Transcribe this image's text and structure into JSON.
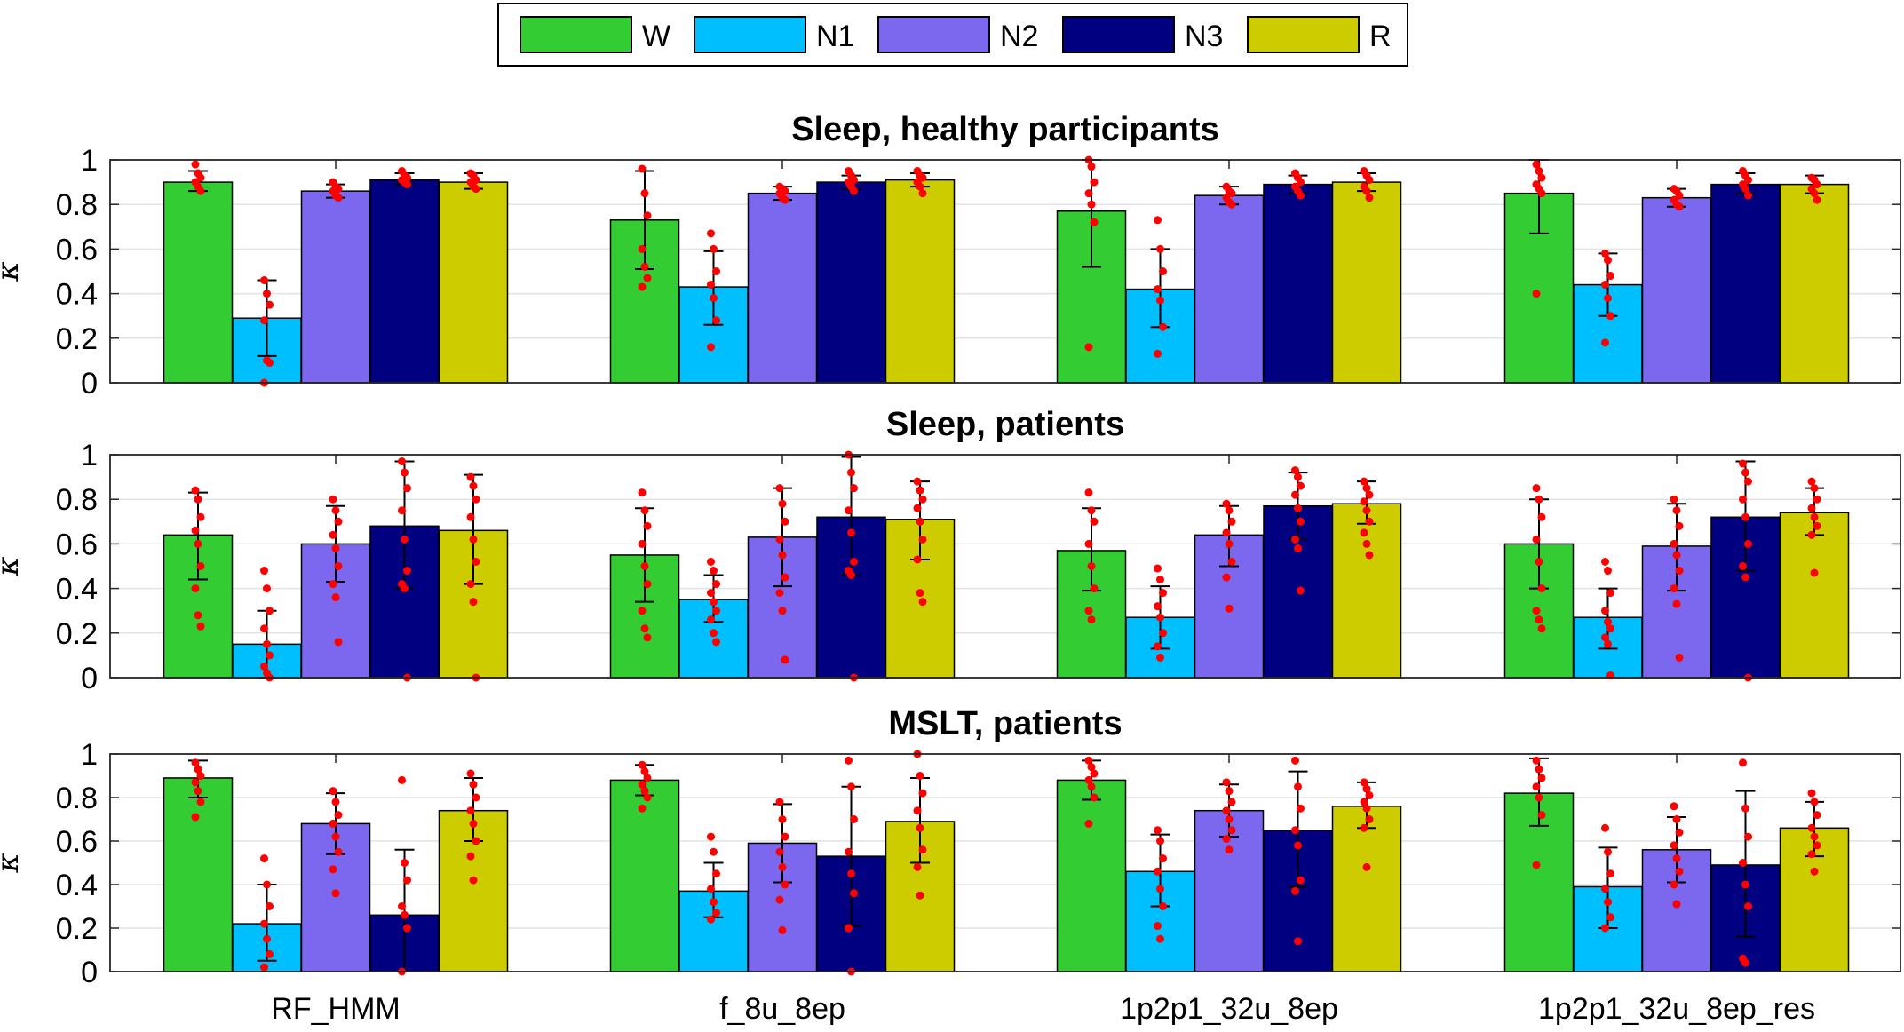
{
  "legend": [
    {
      "label": "W",
      "color": "#33cc33"
    },
    {
      "label": "N1",
      "color": "#00bfff"
    },
    {
      "label": "N2",
      "color": "#7b68ee"
    },
    {
      "label": "N3",
      "color": "#000080"
    },
    {
      "label": "R",
      "color": "#cccc00"
    }
  ],
  "chart_data": [
    {
      "type": "bar",
      "title": "Sleep, healthy participants",
      "ylabel": "κ",
      "ylim": [
        0,
        1
      ],
      "yticks": [
        "0",
        "0.2",
        "0.4",
        "0.6",
        "0.8",
        "1"
      ],
      "categories": [
        "RF_HMM",
        "f_8u_8ep",
        "1p2p1_32u_8ep",
        "1p2p1_32u_8ep_res"
      ],
      "series": [
        {
          "name": "W",
          "values": [
            0.9,
            0.73,
            0.77,
            0.85
          ],
          "err_low": [
            0.86,
            0.51,
            0.52,
            0.67
          ],
          "err_high": [
            0.95,
            0.95,
            1.0,
            1.0
          ],
          "points": [
            [
              0.98,
              0.94,
              0.92,
              0.9,
              0.88,
              0.86
            ],
            [
              0.96,
              0.85,
              0.75,
              0.6,
              0.52,
              0.47,
              0.43
            ],
            [
              1.0,
              0.97,
              0.9,
              0.85,
              0.8,
              0.72,
              0.16
            ],
            [
              0.98,
              0.95,
              0.92,
              0.89,
              0.87,
              0.85,
              0.4
            ]
          ]
        },
        {
          "name": "N1",
          "values": [
            0.29,
            0.43,
            0.42,
            0.44
          ],
          "err_low": [
            0.12,
            0.26,
            0.25,
            0.3
          ],
          "err_high": [
            0.46,
            0.59,
            0.6,
            0.58
          ],
          "points": [
            [
              0.46,
              0.4,
              0.35,
              0.28,
              0.1,
              0.09,
              0.0
            ],
            [
              0.67,
              0.6,
              0.5,
              0.44,
              0.38,
              0.28,
              0.16
            ],
            [
              0.73,
              0.6,
              0.5,
              0.42,
              0.37,
              0.25,
              0.13
            ],
            [
              0.58,
              0.55,
              0.48,
              0.44,
              0.38,
              0.3,
              0.18
            ]
          ]
        },
        {
          "name": "N2",
          "values": [
            0.86,
            0.85,
            0.84,
            0.83
          ],
          "err_low": [
            0.83,
            0.82,
            0.8,
            0.79
          ],
          "err_high": [
            0.89,
            0.88,
            0.88,
            0.87
          ],
          "points": [
            [
              0.9,
              0.88,
              0.87,
              0.86,
              0.84,
              0.83
            ],
            [
              0.88,
              0.87,
              0.86,
              0.85,
              0.83,
              0.82
            ],
            [
              0.88,
              0.86,
              0.85,
              0.83,
              0.81,
              0.8
            ],
            [
              0.87,
              0.86,
              0.84,
              0.82,
              0.8,
              0.79
            ]
          ]
        },
        {
          "name": "N3",
          "values": [
            0.91,
            0.9,
            0.89,
            0.89
          ],
          "err_low": [
            0.89,
            0.87,
            0.85,
            0.85
          ],
          "err_high": [
            0.94,
            0.93,
            0.93,
            0.94
          ],
          "points": [
            [
              0.95,
              0.93,
              0.92,
              0.91,
              0.9,
              0.89
            ],
            [
              0.95,
              0.93,
              0.91,
              0.9,
              0.88,
              0.86
            ],
            [
              0.94,
              0.92,
              0.9,
              0.88,
              0.86,
              0.84
            ],
            [
              0.95,
              0.93,
              0.91,
              0.89,
              0.87,
              0.84
            ]
          ]
        },
        {
          "name": "R",
          "values": [
            0.9,
            0.91,
            0.9,
            0.89
          ],
          "err_low": [
            0.87,
            0.88,
            0.86,
            0.85
          ],
          "err_high": [
            0.94,
            0.94,
            0.94,
            0.93
          ],
          "points": [
            [
              0.94,
              0.93,
              0.91,
              0.9,
              0.88,
              0.87
            ],
            [
              0.95,
              0.93,
              0.92,
              0.9,
              0.88,
              0.85
            ],
            [
              0.95,
              0.93,
              0.91,
              0.88,
              0.86,
              0.83
            ],
            [
              0.92,
              0.91,
              0.89,
              0.87,
              0.85,
              0.82
            ]
          ]
        }
      ]
    },
    {
      "type": "bar",
      "title": "Sleep, patients",
      "ylabel": "κ",
      "ylim": [
        0,
        1
      ],
      "yticks": [
        "0",
        "0.2",
        "0.4",
        "0.6",
        "0.8",
        "1"
      ],
      "categories": [
        "RF_HMM",
        "f_8u_8ep",
        "1p2p1_32u_8ep",
        "1p2p1_32u_8ep_res"
      ],
      "series": [
        {
          "name": "W",
          "values": [
            0.64,
            0.55,
            0.57,
            0.6
          ],
          "err_low": [
            0.44,
            0.34,
            0.39,
            0.4
          ],
          "err_high": [
            0.83,
            0.76,
            0.76,
            0.8
          ],
          "points": [
            [
              0.84,
              0.8,
              0.72,
              0.66,
              0.6,
              0.5,
              0.4,
              0.28,
              0.23
            ],
            [
              0.83,
              0.75,
              0.68,
              0.6,
              0.5,
              0.42,
              0.3,
              0.22,
              0.18
            ],
            [
              0.83,
              0.75,
              0.7,
              0.6,
              0.5,
              0.4,
              0.3,
              0.26
            ],
            [
              0.85,
              0.8,
              0.72,
              0.62,
              0.52,
              0.4,
              0.3,
              0.26,
              0.22
            ]
          ]
        },
        {
          "name": "N1",
          "values": [
            0.15,
            0.35,
            0.27,
            0.27
          ],
          "err_low": [
            0.0,
            0.25,
            0.13,
            0.13
          ],
          "err_high": [
            0.3,
            0.46,
            0.41,
            0.4
          ],
          "points": [
            [
              0.48,
              0.4,
              0.3,
              0.22,
              0.15,
              0.1,
              0.05,
              0.02,
              0.0
            ],
            [
              0.52,
              0.48,
              0.42,
              0.38,
              0.34,
              0.3,
              0.26,
              0.2,
              0.16
            ],
            [
              0.49,
              0.44,
              0.38,
              0.32,
              0.27,
              0.2,
              0.14,
              0.09
            ],
            [
              0.52,
              0.48,
              0.38,
              0.3,
              0.25,
              0.22,
              0.18,
              0.15,
              0.01
            ]
          ]
        },
        {
          "name": "N2",
          "values": [
            0.6,
            0.63,
            0.64,
            0.59
          ],
          "err_low": [
            0.43,
            0.41,
            0.5,
            0.39
          ],
          "err_high": [
            0.77,
            0.85,
            0.77,
            0.78
          ],
          "points": [
            [
              0.8,
              0.75,
              0.7,
              0.64,
              0.58,
              0.5,
              0.42,
              0.36,
              0.16
            ],
            [
              0.85,
              0.78,
              0.7,
              0.62,
              0.55,
              0.45,
              0.38,
              0.3,
              0.08
            ],
            [
              0.78,
              0.75,
              0.7,
              0.65,
              0.6,
              0.52,
              0.45,
              0.31
            ],
            [
              0.8,
              0.75,
              0.68,
              0.6,
              0.55,
              0.48,
              0.4,
              0.33,
              0.09
            ]
          ]
        },
        {
          "name": "N3",
          "values": [
            0.68,
            0.72,
            0.77,
            0.72
          ],
          "err_low": [
            0.4,
            0.46,
            0.62,
            0.48
          ],
          "err_high": [
            0.97,
            0.99,
            0.92,
            0.97
          ],
          "points": [
            [
              0.97,
              0.92,
              0.85,
              0.75,
              0.62,
              0.48,
              0.42,
              0.4,
              0.0
            ],
            [
              1.0,
              0.92,
              0.85,
              0.75,
              0.65,
              0.52,
              0.48,
              0.46,
              0.0
            ],
            [
              0.93,
              0.9,
              0.86,
              0.82,
              0.76,
              0.7,
              0.62,
              0.58,
              0.39
            ],
            [
              0.96,
              0.92,
              0.88,
              0.8,
              0.72,
              0.6,
              0.5,
              0.45,
              0.0
            ]
          ]
        },
        {
          "name": "R",
          "values": [
            0.66,
            0.71,
            0.78,
            0.74
          ],
          "err_low": [
            0.42,
            0.53,
            0.69,
            0.64
          ],
          "err_high": [
            0.91,
            0.88,
            0.88,
            0.85
          ],
          "points": [
            [
              0.9,
              0.86,
              0.8,
              0.72,
              0.62,
              0.52,
              0.42,
              0.34,
              0.0
            ],
            [
              0.88,
              0.84,
              0.8,
              0.76,
              0.7,
              0.62,
              0.53,
              0.38,
              0.34
            ],
            [
              0.88,
              0.85,
              0.82,
              0.79,
              0.75,
              0.7,
              0.65,
              0.6,
              0.55
            ],
            [
              0.88,
              0.85,
              0.8,
              0.76,
              0.72,
              0.68,
              0.64,
              0.47
            ]
          ]
        }
      ]
    },
    {
      "type": "bar",
      "title": "MSLT, patients",
      "ylabel": "κ",
      "ylim": [
        0,
        1
      ],
      "yticks": [
        "0",
        "0.2",
        "0.4",
        "0.6",
        "0.8",
        "1"
      ],
      "categories": [
        "RF_HMM",
        "f_8u_8ep",
        "1p2p1_32u_8ep",
        "1p2p1_32u_8ep_res"
      ],
      "series": [
        {
          "name": "W",
          "values": [
            0.89,
            0.88,
            0.88,
            0.82
          ],
          "err_low": [
            0.8,
            0.81,
            0.79,
            0.67
          ],
          "err_high": [
            0.97,
            0.95,
            0.97,
            0.98
          ],
          "points": [
            [
              0.96,
              0.93,
              0.9,
              0.87,
              0.83,
              0.78,
              0.71
            ],
            [
              0.95,
              0.92,
              0.89,
              0.86,
              0.83,
              0.8,
              0.75
            ],
            [
              0.97,
              0.94,
              0.91,
              0.88,
              0.85,
              0.8,
              0.68
            ],
            [
              0.97,
              0.93,
              0.89,
              0.85,
              0.8,
              0.72,
              0.49
            ]
          ]
        },
        {
          "name": "N1",
          "values": [
            0.22,
            0.37,
            0.46,
            0.39
          ],
          "err_low": [
            0.05,
            0.25,
            0.3,
            0.2
          ],
          "err_high": [
            0.4,
            0.5,
            0.63,
            0.57
          ],
          "points": [
            [
              0.52,
              0.4,
              0.3,
              0.22,
              0.15,
              0.08,
              0.02
            ],
            [
              0.62,
              0.55,
              0.45,
              0.38,
              0.32,
              0.27,
              0.24
            ],
            [
              0.65,
              0.6,
              0.52,
              0.46,
              0.38,
              0.3,
              0.21,
              0.15
            ],
            [
              0.66,
              0.55,
              0.45,
              0.38,
              0.32,
              0.25,
              0.2
            ]
          ]
        },
        {
          "name": "N2",
          "values": [
            0.68,
            0.59,
            0.74,
            0.56
          ],
          "err_low": [
            0.54,
            0.41,
            0.62,
            0.41
          ],
          "err_high": [
            0.82,
            0.77,
            0.86,
            0.71
          ],
          "points": [
            [
              0.83,
              0.78,
              0.72,
              0.68,
              0.62,
              0.55,
              0.47,
              0.36
            ],
            [
              0.78,
              0.7,
              0.62,
              0.55,
              0.48,
              0.4,
              0.33,
              0.19
            ],
            [
              0.87,
              0.83,
              0.78,
              0.74,
              0.7,
              0.65,
              0.61,
              0.56
            ],
            [
              0.76,
              0.7,
              0.64,
              0.58,
              0.52,
              0.46,
              0.4,
              0.31
            ]
          ]
        },
        {
          "name": "N3",
          "values": [
            0.26,
            0.53,
            0.65,
            0.49
          ],
          "err_low": [
            0.0,
            0.21,
            0.39,
            0.16
          ],
          "err_high": [
            0.56,
            0.85,
            0.92,
            0.83
          ],
          "points": [
            [
              0.88,
              0.5,
              0.42,
              0.3,
              0.26,
              0.2,
              0.0
            ],
            [
              0.97,
              0.85,
              0.7,
              0.55,
              0.45,
              0.36,
              0.2,
              0.0
            ],
            [
              0.97,
              0.85,
              0.75,
              0.65,
              0.58,
              0.42,
              0.37,
              0.14
            ],
            [
              0.96,
              0.75,
              0.62,
              0.5,
              0.4,
              0.3,
              0.06,
              0.04
            ]
          ]
        },
        {
          "name": "R",
          "values": [
            0.74,
            0.69,
            0.76,
            0.66
          ],
          "err_low": [
            0.6,
            0.5,
            0.66,
            0.53
          ],
          "err_high": [
            0.89,
            0.89,
            0.87,
            0.78
          ],
          "points": [
            [
              0.91,
              0.86,
              0.8,
              0.74,
              0.68,
              0.6,
              0.53,
              0.42
            ],
            [
              1.0,
              0.9,
              0.82,
              0.74,
              0.66,
              0.56,
              0.48,
              0.35
            ],
            [
              0.87,
              0.84,
              0.81,
              0.78,
              0.75,
              0.7,
              0.66,
              0.48
            ],
            [
              0.82,
              0.78,
              0.72,
              0.66,
              0.62,
              0.58,
              0.54,
              0.46
            ]
          ]
        }
      ]
    }
  ]
}
